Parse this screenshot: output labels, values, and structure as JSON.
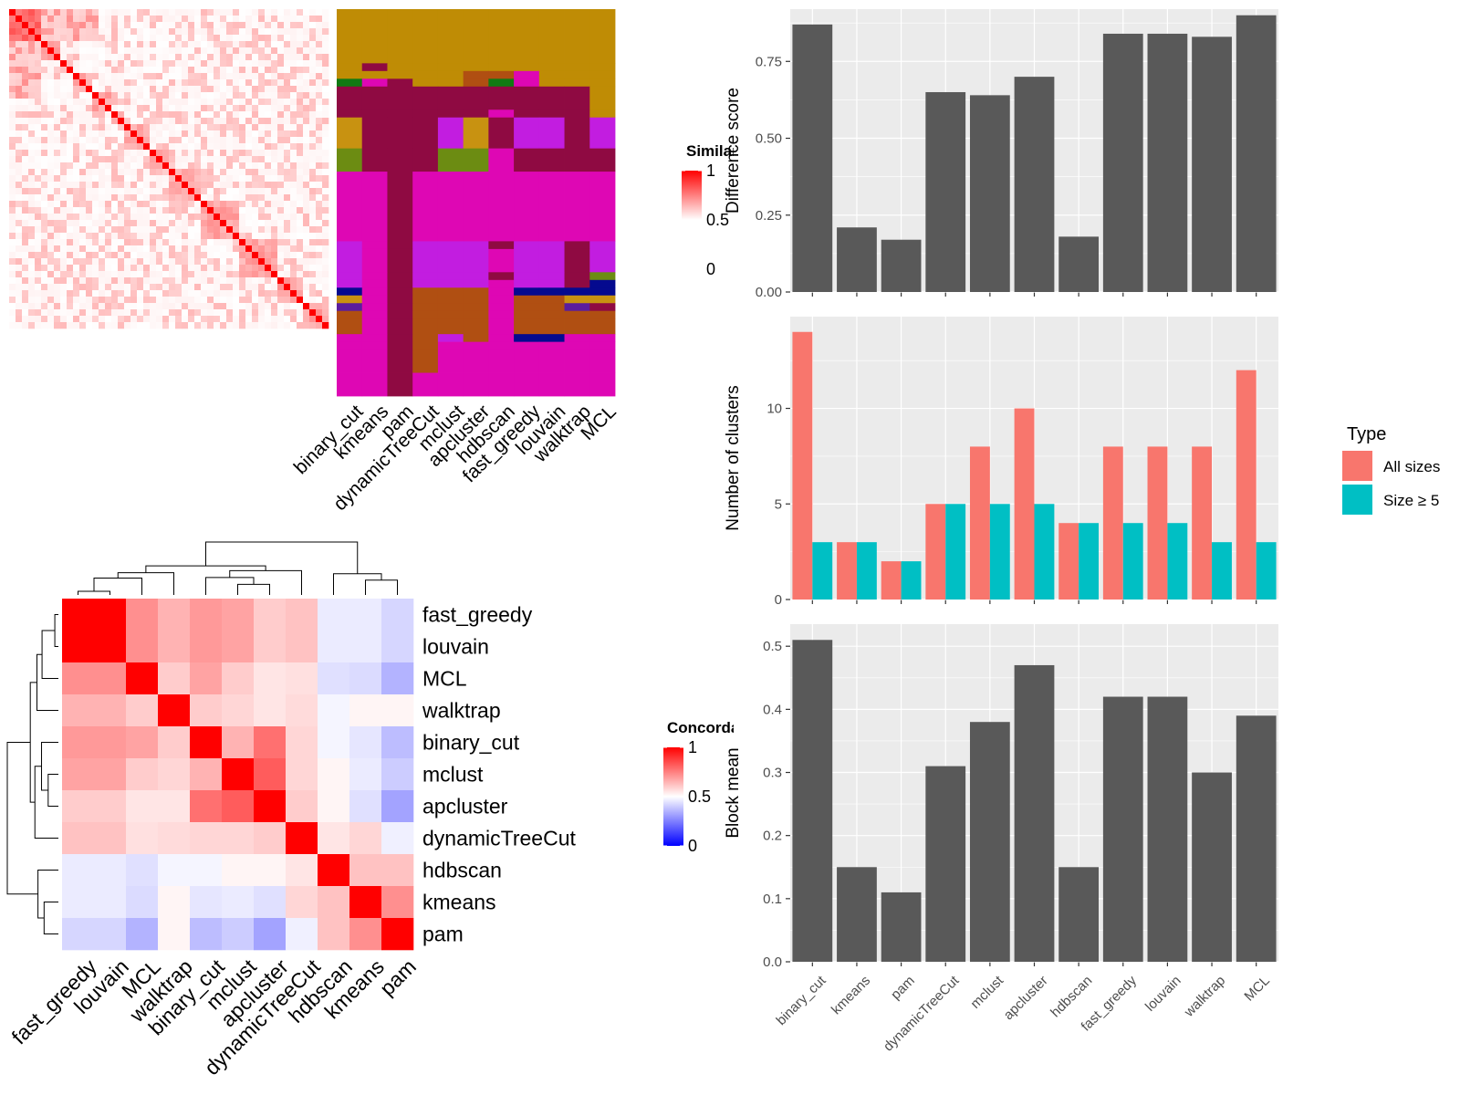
{
  "methods": [
    "binary_cut",
    "kmeans",
    "pam",
    "dynamicTreeCut",
    "mclust",
    "apcluster",
    "hdbscan",
    "fast_greedy",
    "louvain",
    "walktrap",
    "MCL"
  ],
  "colors": {
    "panel_bg": "#EBEBEB",
    "grid": "#ffffff",
    "bar": "#595959",
    "all_sizes": "#F8766D",
    "size_ge5": "#00BFC4",
    "heat_high": "#FF0000",
    "heat_mid": "#FFFFFF",
    "heat_low": "#0000FF"
  },
  "similarity_heatmap": {
    "legend_title": "Similarity",
    "legend_labels": [
      "1",
      "0.5",
      "0"
    ]
  },
  "membership_heatmap": {
    "column_labels": [
      "binary_cut",
      "kmeans",
      "pam",
      "dynamicTreeCut",
      "mclust",
      "apcluster",
      "hdbscan",
      "fast_greedy",
      "louvain",
      "walktrap",
      "MCL"
    ],
    "palette": [
      "#BF8C05",
      "#8F0A42",
      "#DE07B4",
      "#C21DE0",
      "#B04F12",
      "#6C8C12",
      "#117A13",
      "#C89211",
      "#050A8F",
      "#5A1D9E",
      "#DD1E9B"
    ]
  },
  "concordance_heatmap": {
    "legend_title": "Concordance",
    "legend_labels": [
      "1",
      "0.5",
      "0"
    ],
    "order": [
      "fast_greedy",
      "louvain",
      "MCL",
      "walktrap",
      "binary_cut",
      "mclust",
      "apcluster",
      "dynamicTreeCut",
      "hdbscan",
      "kmeans",
      "pam"
    ],
    "row_labels": [
      "fast_greedy",
      "louvain",
      "MCL",
      "walktrap",
      "binary_cut",
      "mclust",
      "apcluster",
      "dynamicTreeCut",
      "hdbscan",
      "kmeans",
      "pam"
    ],
    "column_labels": [
      "fast_greedy",
      "louvain",
      "MCL",
      "walktrap",
      "binary_cut",
      "mclust",
      "apcluster",
      "dynamicTreeCut",
      "hdbscan",
      "kmeans",
      "pam"
    ]
  },
  "chart_data": [
    {
      "type": "heatmap",
      "name": "concordance",
      "rows": [
        "fast_greedy",
        "louvain",
        "MCL",
        "walktrap",
        "binary_cut",
        "mclust",
        "apcluster",
        "dynamicTreeCut",
        "hdbscan",
        "kmeans",
        "pam"
      ],
      "columns": [
        "fast_greedy",
        "louvain",
        "MCL",
        "walktrap",
        "binary_cut",
        "mclust",
        "apcluster",
        "dynamicTreeCut",
        "hdbscan",
        "kmeans",
        "pam"
      ],
      "values": [
        [
          1.0,
          1.0,
          0.72,
          0.65,
          0.7,
          0.68,
          0.6,
          0.62,
          0.46,
          0.46,
          0.42
        ],
        [
          1.0,
          1.0,
          0.72,
          0.65,
          0.7,
          0.68,
          0.6,
          0.62,
          0.46,
          0.46,
          0.42
        ],
        [
          0.72,
          0.72,
          1.0,
          0.6,
          0.68,
          0.6,
          0.55,
          0.56,
          0.44,
          0.43,
          0.35
        ],
        [
          0.65,
          0.65,
          0.6,
          1.0,
          0.6,
          0.58,
          0.55,
          0.57,
          0.48,
          0.52,
          0.52
        ],
        [
          0.7,
          0.7,
          0.68,
          0.6,
          1.0,
          0.65,
          0.78,
          0.58,
          0.48,
          0.45,
          0.37
        ],
        [
          0.68,
          0.68,
          0.6,
          0.58,
          0.65,
          1.0,
          0.82,
          0.58,
          0.52,
          0.46,
          0.4
        ],
        [
          0.6,
          0.6,
          0.55,
          0.55,
          0.78,
          0.82,
          1.0,
          0.6,
          0.52,
          0.44,
          0.32
        ],
        [
          0.62,
          0.62,
          0.56,
          0.57,
          0.58,
          0.58,
          0.6,
          1.0,
          0.55,
          0.58,
          0.47
        ],
        [
          0.46,
          0.46,
          0.44,
          0.48,
          0.48,
          0.52,
          0.52,
          0.55,
          1.0,
          0.62,
          0.62
        ],
        [
          0.46,
          0.46,
          0.43,
          0.52,
          0.45,
          0.46,
          0.44,
          0.58,
          0.62,
          1.0,
          0.72
        ],
        [
          0.42,
          0.42,
          0.35,
          0.52,
          0.37,
          0.4,
          0.32,
          0.47,
          0.62,
          0.72,
          1.0
        ]
      ]
    },
    {
      "type": "bar",
      "categories": [
        "binary_cut",
        "kmeans",
        "pam",
        "dynamicTreeCut",
        "mclust",
        "apcluster",
        "hdbscan",
        "fast_greedy",
        "louvain",
        "walktrap",
        "MCL"
      ],
      "values": [
        0.87,
        0.21,
        0.17,
        0.65,
        0.64,
        0.7,
        0.18,
        0.84,
        0.84,
        0.83,
        0.9
      ],
      "xlabel": "",
      "ylabel": "Difference score",
      "ylim": [
        0,
        0.92
      ],
      "yticks": [
        "0.00",
        "0.25",
        "0.50",
        "0.75"
      ],
      "grid": true
    },
    {
      "type": "bar",
      "categories": [
        "binary_cut",
        "kmeans",
        "pam",
        "dynamicTreeCut",
        "mclust",
        "apcluster",
        "hdbscan",
        "fast_greedy",
        "louvain",
        "walktrap",
        "MCL"
      ],
      "series": [
        {
          "name": "All sizes",
          "values": [
            14,
            3,
            2,
            5,
            8,
            10,
            4,
            8,
            8,
            8,
            12
          ]
        },
        {
          "name": "Size ≥ 5",
          "values": [
            3,
            3,
            2,
            5,
            5,
            5,
            4,
            4,
            4,
            3,
            3
          ]
        }
      ],
      "legend_title": "Type",
      "legend_position": "right",
      "xlabel": "",
      "ylabel": "Number of clusters",
      "ylim": [
        0,
        14.8
      ],
      "yticks": [
        "0",
        "5",
        "10"
      ],
      "grid": true
    },
    {
      "type": "bar",
      "categories": [
        "binary_cut",
        "kmeans",
        "pam",
        "dynamicTreeCut",
        "mclust",
        "apcluster",
        "hdbscan",
        "fast_greedy",
        "louvain",
        "walktrap",
        "MCL"
      ],
      "values": [
        0.51,
        0.15,
        0.11,
        0.31,
        0.38,
        0.47,
        0.15,
        0.42,
        0.42,
        0.3,
        0.39
      ],
      "xlabel": "",
      "ylabel": "Block mean",
      "ylim": [
        0,
        0.535
      ],
      "yticks": [
        "0.0",
        "0.1",
        "0.2",
        "0.3",
        "0.4",
        "0.5"
      ],
      "grid": true
    }
  ]
}
